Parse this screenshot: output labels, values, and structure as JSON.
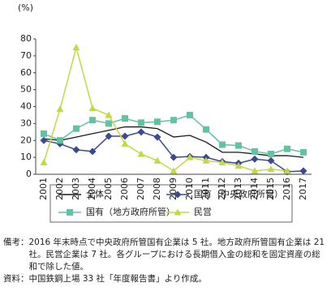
{
  "chart_data": {
    "type": "line",
    "y_unit": "(%)",
    "categories": [
      "2001",
      "2002",
      "2003",
      "2004",
      "2005",
      "2006",
      "2007",
      "2008",
      "2009",
      "2010",
      "2011",
      "2012",
      "2013",
      "2014",
      "2015",
      "2016",
      "2017"
    ],
    "series": [
      {
        "name": "全体",
        "color": "#1a1a1a",
        "marker": "none",
        "values": [
          21,
          20,
          22,
          24,
          26,
          28,
          28,
          27,
          22,
          23,
          19,
          13,
          13,
          12,
          11,
          11,
          10
        ]
      },
      {
        "name": "国有（中央政府所管）",
        "color": "#3b4a8f",
        "marker": "diamond",
        "values": [
          20,
          18,
          14.5,
          13.5,
          22.5,
          22.5,
          25,
          22,
          10,
          10.5,
          10,
          7.5,
          6.5,
          9,
          8,
          1.5,
          2
        ]
      },
      {
        "name": "国有（地方政府所管）",
        "color": "#62c3a3",
        "marker": "square",
        "values": [
          24,
          20,
          27,
          32,
          30,
          33,
          30.5,
          31,
          32,
          35,
          26.5,
          17.5,
          17,
          13.5,
          12,
          15,
          13
        ]
      },
      {
        "name": "民営",
        "color": "#c3d844",
        "marker": "triangle",
        "values": [
          7,
          38.5,
          75,
          39,
          35,
          18,
          12,
          8,
          2,
          10,
          8,
          7,
          5,
          2,
          3,
          2,
          null
        ]
      }
    ],
    "ylim": [
      0,
      80
    ],
    "yticks": [
      0,
      10,
      20,
      30,
      40,
      50,
      60,
      70,
      80
    ],
    "grid": false
  },
  "notes": [
    {
      "label": "備考：",
      "text": "2016 年末時点で中央政府所管国有企業は 5 社。地方政府所管国有企業は 21 社。民営企業は 7 社。各グループにおける長期借入金の総和を固定資産の総和で除した値。"
    },
    {
      "label": "資料：",
      "text": "中国鉄鋼上場 33 社「年度報告書」より作成。"
    }
  ]
}
